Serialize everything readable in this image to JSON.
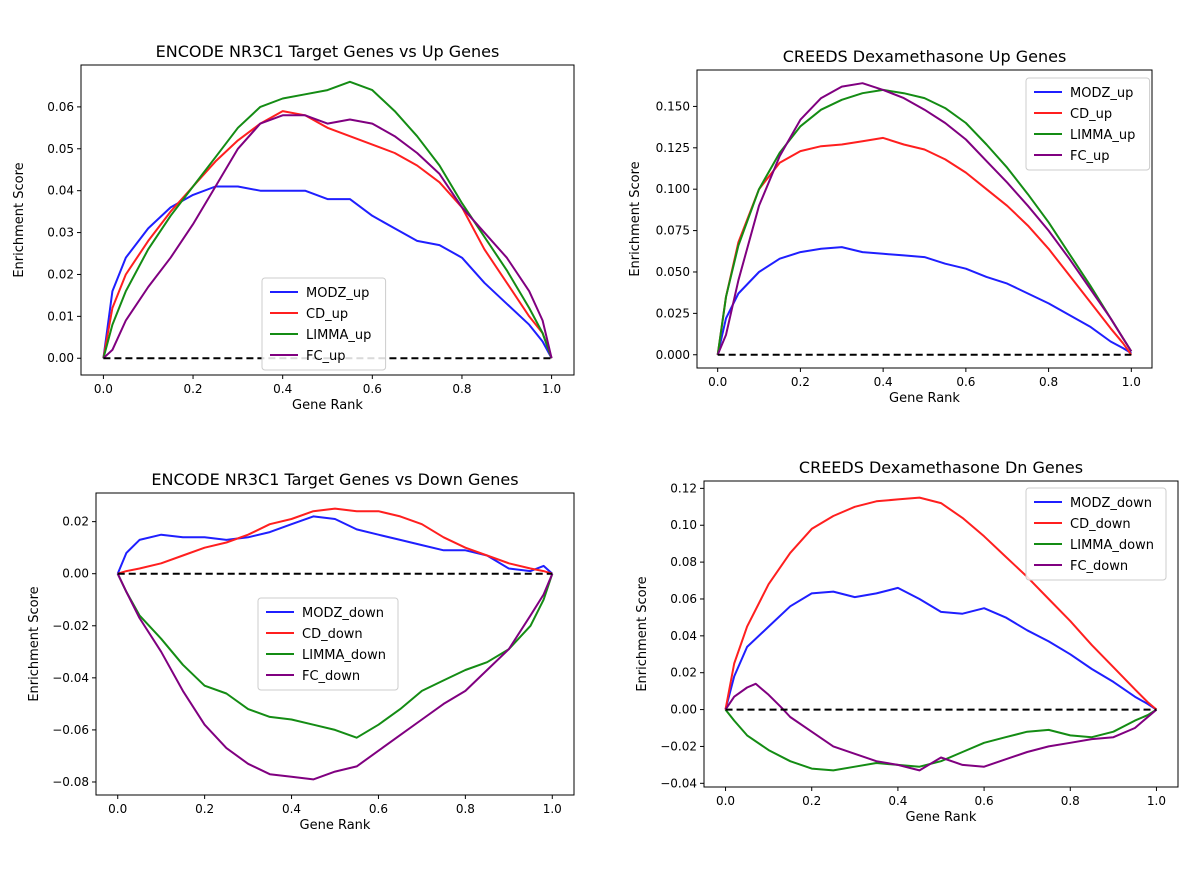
{
  "colors": {
    "blue": "#1f1fff",
    "red": "#ff1f1f",
    "green": "#148c14",
    "purple": "#800080"
  },
  "chart_data": [
    {
      "type": "line",
      "title": "ENCODE NR3C1 Target Genes vs Up Genes",
      "xlabel": "Gene Rank",
      "ylabel": "Enrichment Score",
      "xlim": [
        0,
        1
      ],
      "ylim": [
        -0.004,
        0.07
      ],
      "xticks": [
        "0.0",
        "0.2",
        "0.4",
        "0.6",
        "0.8",
        "1.0"
      ],
      "yticks": [
        "0.00",
        "0.01",
        "0.02",
        "0.03",
        "0.04",
        "0.05",
        "0.06"
      ],
      "legend_position": "lower-center",
      "baseline": 0,
      "series": [
        {
          "name": "MODZ_up",
          "color": "#1f1fff",
          "x": [
            0,
            0.02,
            0.05,
            0.1,
            0.15,
            0.2,
            0.25,
            0.3,
            0.35,
            0.4,
            0.45,
            0.5,
            0.55,
            0.6,
            0.65,
            0.7,
            0.75,
            0.8,
            0.85,
            0.9,
            0.95,
            0.98,
            1.0
          ],
          "y": [
            0,
            0.016,
            0.024,
            0.031,
            0.036,
            0.039,
            0.041,
            0.041,
            0.04,
            0.04,
            0.04,
            0.038,
            0.038,
            0.034,
            0.031,
            0.028,
            0.027,
            0.024,
            0.018,
            0.013,
            0.008,
            0.004,
            0
          ]
        },
        {
          "name": "CD_up",
          "color": "#ff1f1f",
          "x": [
            0,
            0.02,
            0.05,
            0.1,
            0.15,
            0.2,
            0.25,
            0.3,
            0.35,
            0.4,
            0.45,
            0.5,
            0.55,
            0.6,
            0.65,
            0.7,
            0.75,
            0.8,
            0.85,
            0.9,
            0.95,
            0.98,
            1.0
          ],
          "y": [
            0,
            0.012,
            0.02,
            0.028,
            0.035,
            0.041,
            0.047,
            0.052,
            0.056,
            0.059,
            0.058,
            0.055,
            0.053,
            0.051,
            0.049,
            0.046,
            0.042,
            0.036,
            0.026,
            0.018,
            0.01,
            0.006,
            0
          ]
        },
        {
          "name": "LIMMA_up",
          "color": "#148c14",
          "x": [
            0,
            0.02,
            0.05,
            0.1,
            0.15,
            0.2,
            0.25,
            0.3,
            0.35,
            0.4,
            0.45,
            0.5,
            0.55,
            0.6,
            0.65,
            0.7,
            0.75,
            0.8,
            0.85,
            0.9,
            0.95,
            0.98,
            1.0
          ],
          "y": [
            0,
            0.008,
            0.016,
            0.026,
            0.034,
            0.041,
            0.048,
            0.055,
            0.06,
            0.062,
            0.063,
            0.064,
            0.066,
            0.064,
            0.059,
            0.053,
            0.046,
            0.037,
            0.029,
            0.021,
            0.012,
            0.006,
            0
          ]
        },
        {
          "name": "FC_up",
          "color": "#800080",
          "x": [
            0,
            0.02,
            0.05,
            0.1,
            0.15,
            0.2,
            0.25,
            0.3,
            0.35,
            0.4,
            0.45,
            0.5,
            0.55,
            0.6,
            0.65,
            0.7,
            0.75,
            0.8,
            0.85,
            0.9,
            0.95,
            0.98,
            1.0
          ],
          "y": [
            0,
            0.002,
            0.009,
            0.017,
            0.024,
            0.032,
            0.041,
            0.05,
            0.056,
            0.058,
            0.058,
            0.056,
            0.057,
            0.056,
            0.053,
            0.049,
            0.044,
            0.036,
            0.03,
            0.024,
            0.016,
            0.009,
            0
          ]
        }
      ]
    },
    {
      "type": "line",
      "title": "CREEDS Dexamethasone Up Genes",
      "xlabel": "Gene Rank",
      "ylabel": "Enrichment Score",
      "xlim": [
        0,
        1
      ],
      "ylim": [
        -0.008,
        0.172
      ],
      "xticks": [
        "0.0",
        "0.2",
        "0.4",
        "0.6",
        "0.8",
        "1.0"
      ],
      "yticks": [
        "0.000",
        "0.025",
        "0.050",
        "0.075",
        "0.100",
        "0.125",
        "0.150"
      ],
      "legend_position": "upper-right",
      "baseline": 0,
      "series": [
        {
          "name": "MODZ_up",
          "color": "#1f1fff",
          "x": [
            0,
            0.02,
            0.05,
            0.1,
            0.15,
            0.2,
            0.25,
            0.3,
            0.35,
            0.4,
            0.45,
            0.5,
            0.55,
            0.6,
            0.65,
            0.7,
            0.75,
            0.8,
            0.85,
            0.9,
            0.95,
            0.98,
            1.0
          ],
          "y": [
            0,
            0.022,
            0.037,
            0.05,
            0.058,
            0.062,
            0.064,
            0.065,
            0.062,
            0.061,
            0.06,
            0.059,
            0.055,
            0.052,
            0.047,
            0.043,
            0.037,
            0.031,
            0.024,
            0.017,
            0.008,
            0.004,
            0.001
          ]
        },
        {
          "name": "CD_up",
          "color": "#ff1f1f",
          "x": [
            0,
            0.02,
            0.05,
            0.1,
            0.15,
            0.2,
            0.25,
            0.3,
            0.35,
            0.4,
            0.45,
            0.5,
            0.55,
            0.6,
            0.65,
            0.7,
            0.75,
            0.8,
            0.85,
            0.9,
            0.95,
            0.98,
            1.0
          ],
          "y": [
            0,
            0.035,
            0.068,
            0.1,
            0.116,
            0.123,
            0.126,
            0.127,
            0.129,
            0.131,
            0.127,
            0.124,
            0.118,
            0.11,
            0.1,
            0.09,
            0.078,
            0.064,
            0.048,
            0.032,
            0.016,
            0.007,
            0
          ]
        },
        {
          "name": "LIMMA_up",
          "color": "#148c14",
          "x": [
            0,
            0.02,
            0.05,
            0.1,
            0.15,
            0.2,
            0.25,
            0.3,
            0.35,
            0.4,
            0.45,
            0.5,
            0.55,
            0.6,
            0.65,
            0.7,
            0.75,
            0.8,
            0.85,
            0.9,
            0.95,
            0.98,
            1.0
          ],
          "y": [
            0,
            0.035,
            0.066,
            0.1,
            0.122,
            0.138,
            0.148,
            0.154,
            0.158,
            0.16,
            0.158,
            0.155,
            0.149,
            0.14,
            0.127,
            0.113,
            0.097,
            0.08,
            0.061,
            0.042,
            0.022,
            0.01,
            0.002
          ]
        },
        {
          "name": "FC_up",
          "color": "#800080",
          "x": [
            0,
            0.02,
            0.05,
            0.1,
            0.15,
            0.2,
            0.25,
            0.3,
            0.35,
            0.4,
            0.45,
            0.5,
            0.55,
            0.6,
            0.65,
            0.7,
            0.75,
            0.8,
            0.85,
            0.9,
            0.95,
            0.98,
            1.0
          ],
          "y": [
            0,
            0.012,
            0.045,
            0.09,
            0.12,
            0.142,
            0.155,
            0.162,
            0.164,
            0.16,
            0.155,
            0.148,
            0.14,
            0.13,
            0.117,
            0.104,
            0.09,
            0.075,
            0.058,
            0.04,
            0.022,
            0.01,
            0.002
          ]
        }
      ]
    },
    {
      "type": "line",
      "title": "ENCODE NR3C1 Target Genes vs Down Genes",
      "xlabel": "Gene Rank",
      "ylabel": "Enrichment Score",
      "xlim": [
        0,
        1
      ],
      "ylim": [
        -0.085,
        0.031
      ],
      "xticks": [
        "0.0",
        "0.2",
        "0.4",
        "0.6",
        "0.8",
        "1.0"
      ],
      "yticks": [
        "−0.08",
        "−0.06",
        "−0.04",
        "−0.02",
        "0.00",
        "0.02"
      ],
      "legend_position": "center",
      "baseline": 0,
      "series": [
        {
          "name": "MODZ_down",
          "color": "#1f1fff",
          "x": [
            0,
            0.02,
            0.05,
            0.1,
            0.15,
            0.2,
            0.25,
            0.3,
            0.35,
            0.4,
            0.45,
            0.5,
            0.55,
            0.6,
            0.65,
            0.7,
            0.75,
            0.8,
            0.85,
            0.9,
            0.95,
            0.98,
            1.0
          ],
          "y": [
            0,
            0.008,
            0.013,
            0.015,
            0.014,
            0.014,
            0.013,
            0.014,
            0.016,
            0.019,
            0.022,
            0.021,
            0.017,
            0.015,
            0.013,
            0.011,
            0.009,
            0.009,
            0.007,
            0.002,
            0.001,
            0.003,
            0
          ]
        },
        {
          "name": "CD_down",
          "color": "#ff1f1f",
          "x": [
            0,
            0.02,
            0.05,
            0.1,
            0.15,
            0.2,
            0.25,
            0.3,
            0.35,
            0.4,
            0.45,
            0.5,
            0.55,
            0.6,
            0.65,
            0.7,
            0.75,
            0.8,
            0.85,
            0.9,
            0.95,
            0.98,
            1.0
          ],
          "y": [
            0,
            0.001,
            0.002,
            0.004,
            0.007,
            0.01,
            0.012,
            0.015,
            0.019,
            0.021,
            0.024,
            0.025,
            0.024,
            0.024,
            0.022,
            0.019,
            0.014,
            0.01,
            0.007,
            0.004,
            0.002,
            0.001,
            0
          ]
        },
        {
          "name": "LIMMA_down",
          "color": "#148c14",
          "x": [
            0,
            0.02,
            0.05,
            0.1,
            0.15,
            0.2,
            0.25,
            0.3,
            0.35,
            0.4,
            0.45,
            0.5,
            0.55,
            0.6,
            0.65,
            0.7,
            0.75,
            0.8,
            0.85,
            0.9,
            0.95,
            0.98,
            1.0
          ],
          "y": [
            0,
            -0.007,
            -0.016,
            -0.025,
            -0.035,
            -0.043,
            -0.046,
            -0.052,
            -0.055,
            -0.056,
            -0.058,
            -0.06,
            -0.063,
            -0.058,
            -0.052,
            -0.045,
            -0.041,
            -0.037,
            -0.034,
            -0.029,
            -0.02,
            -0.01,
            0
          ]
        },
        {
          "name": "FC_down",
          "color": "#800080",
          "x": [
            0,
            0.02,
            0.05,
            0.1,
            0.15,
            0.2,
            0.25,
            0.3,
            0.35,
            0.4,
            0.45,
            0.5,
            0.55,
            0.6,
            0.65,
            0.7,
            0.75,
            0.8,
            0.85,
            0.9,
            0.95,
            0.98,
            1.0
          ],
          "y": [
            0,
            -0.007,
            -0.017,
            -0.03,
            -0.045,
            -0.058,
            -0.067,
            -0.073,
            -0.077,
            -0.078,
            -0.079,
            -0.076,
            -0.074,
            -0.068,
            -0.062,
            -0.056,
            -0.05,
            -0.045,
            -0.037,
            -0.029,
            -0.016,
            -0.008,
            0
          ]
        }
      ]
    },
    {
      "type": "line",
      "title": "CREEDS Dexamethasone Dn Genes",
      "xlabel": "Gene Rank",
      "ylabel": "Enrichment Score",
      "xlim": [
        0,
        1
      ],
      "ylim": [
        -0.042,
        0.124
      ],
      "xticks": [
        "0.0",
        "0.2",
        "0.4",
        "0.6",
        "0.8",
        "1.0"
      ],
      "yticks": [
        "−0.04",
        "−0.02",
        "0.00",
        "0.02",
        "0.04",
        "0.06",
        "0.08",
        "0.10",
        "0.12"
      ],
      "legend_position": "upper-right",
      "baseline": 0,
      "series": [
        {
          "name": "MODZ_down",
          "color": "#1f1fff",
          "x": [
            0,
            0.02,
            0.05,
            0.1,
            0.15,
            0.2,
            0.25,
            0.3,
            0.35,
            0.4,
            0.45,
            0.5,
            0.55,
            0.6,
            0.65,
            0.7,
            0.75,
            0.8,
            0.85,
            0.9,
            0.95,
            0.98,
            1.0
          ],
          "y": [
            0,
            0.018,
            0.034,
            0.045,
            0.056,
            0.063,
            0.064,
            0.061,
            0.063,
            0.066,
            0.06,
            0.053,
            0.052,
            0.055,
            0.05,
            0.043,
            0.037,
            0.03,
            0.022,
            0.015,
            0.007,
            0.003,
            0
          ]
        },
        {
          "name": "CD_down",
          "color": "#ff1f1f",
          "x": [
            0,
            0.02,
            0.05,
            0.1,
            0.15,
            0.2,
            0.25,
            0.3,
            0.35,
            0.4,
            0.45,
            0.5,
            0.55,
            0.6,
            0.65,
            0.7,
            0.75,
            0.8,
            0.85,
            0.9,
            0.95,
            0.98,
            1.0
          ],
          "y": [
            0,
            0.025,
            0.045,
            0.068,
            0.085,
            0.098,
            0.105,
            0.11,
            0.113,
            0.114,
            0.115,
            0.112,
            0.104,
            0.094,
            0.083,
            0.072,
            0.06,
            0.048,
            0.035,
            0.023,
            0.011,
            0.004,
            0
          ]
        },
        {
          "name": "LIMMA_down",
          "color": "#148c14",
          "x": [
            0,
            0.02,
            0.05,
            0.1,
            0.15,
            0.2,
            0.25,
            0.3,
            0.35,
            0.4,
            0.45,
            0.5,
            0.55,
            0.6,
            0.65,
            0.7,
            0.75,
            0.8,
            0.85,
            0.9,
            0.95,
            0.98,
            1.0
          ],
          "y": [
            0,
            -0.006,
            -0.014,
            -0.022,
            -0.028,
            -0.032,
            -0.033,
            -0.031,
            -0.029,
            -0.03,
            -0.031,
            -0.028,
            -0.023,
            -0.018,
            -0.015,
            -0.012,
            -0.011,
            -0.014,
            -0.015,
            -0.012,
            -0.006,
            -0.003,
            0
          ]
        },
        {
          "name": "FC_down",
          "color": "#800080",
          "x": [
            0,
            0.02,
            0.05,
            0.07,
            0.1,
            0.13,
            0.15,
            0.2,
            0.25,
            0.3,
            0.35,
            0.4,
            0.45,
            0.5,
            0.55,
            0.6,
            0.65,
            0.7,
            0.75,
            0.8,
            0.85,
            0.9,
            0.95,
            0.98,
            1.0
          ],
          "y": [
            0,
            0.007,
            0.012,
            0.014,
            0.008,
            0.001,
            -0.004,
            -0.012,
            -0.02,
            -0.024,
            -0.028,
            -0.03,
            -0.033,
            -0.026,
            -0.03,
            -0.031,
            -0.027,
            -0.023,
            -0.02,
            -0.018,
            -0.016,
            -0.015,
            -0.01,
            -0.004,
            0
          ]
        }
      ]
    }
  ]
}
